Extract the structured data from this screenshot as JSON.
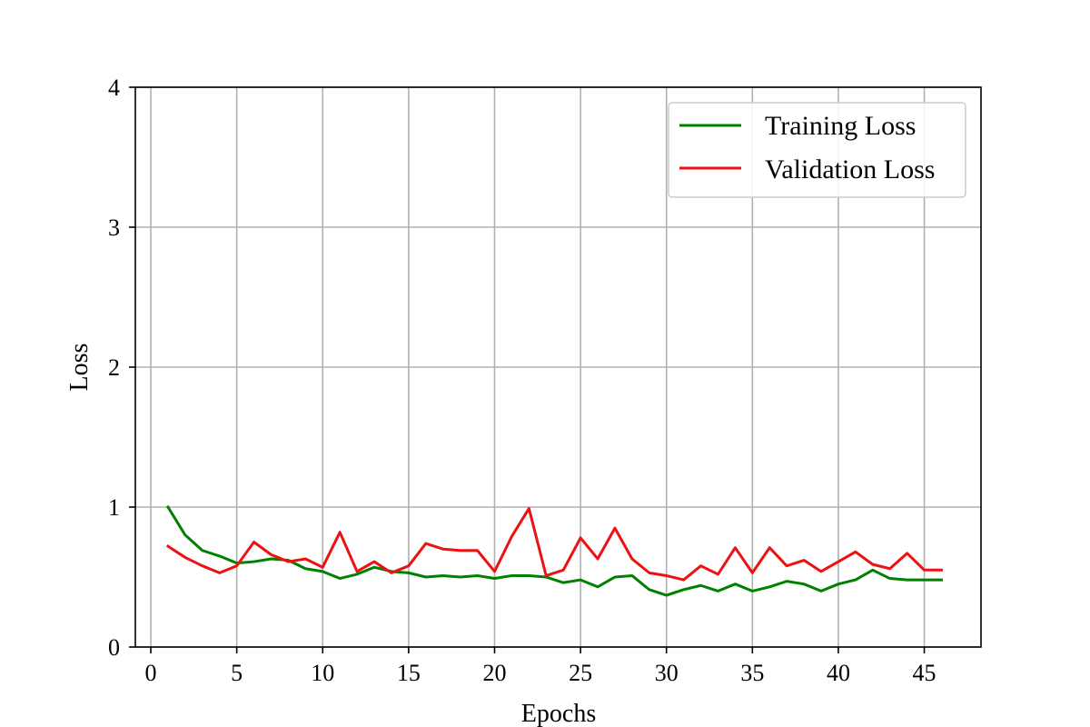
{
  "chart_data": {
    "type": "line",
    "title": "",
    "xlabel": "Epochs",
    "ylabel": "Loss",
    "xlim": [
      -0.9,
      48.3
    ],
    "ylim": [
      0,
      4
    ],
    "x_ticks": [
      "0",
      "5",
      "10",
      "15",
      "20",
      "25",
      "30",
      "35",
      "40",
      "45"
    ],
    "y_ticks": [
      "0",
      "1",
      "2",
      "3",
      "4"
    ],
    "grid": true,
    "legend_position": "top-right",
    "x": [
      1,
      2,
      3,
      4,
      5,
      6,
      7,
      8,
      9,
      10,
      11,
      12,
      13,
      14,
      15,
      16,
      17,
      18,
      19,
      20,
      21,
      22,
      23,
      24,
      25,
      26,
      27,
      28,
      29,
      30,
      31,
      32,
      33,
      34,
      35,
      36,
      37,
      38,
      39,
      40,
      41,
      42,
      43,
      44,
      45,
      46
    ],
    "series": [
      {
        "name": "Training Loss",
        "color": "#008000",
        "values": [
          1.0,
          0.8,
          0.69,
          0.65,
          0.6,
          0.61,
          0.63,
          0.62,
          0.56,
          0.54,
          0.49,
          0.52,
          0.57,
          0.54,
          0.53,
          0.5,
          0.51,
          0.5,
          0.51,
          0.49,
          0.51,
          0.51,
          0.5,
          0.46,
          0.48,
          0.43,
          0.5,
          0.51,
          0.41,
          0.37,
          0.41,
          0.44,
          0.4,
          0.45,
          0.4,
          0.43,
          0.47,
          0.45,
          0.4,
          0.45,
          0.48,
          0.55,
          0.49,
          0.48,
          0.48,
          0.48
        ]
      },
      {
        "name": "Validation Loss",
        "color": "#ee1111",
        "values": [
          0.72,
          0.64,
          0.58,
          0.53,
          0.58,
          0.75,
          0.66,
          0.61,
          0.63,
          0.57,
          0.82,
          0.54,
          0.61,
          0.53,
          0.58,
          0.74,
          0.7,
          0.69,
          0.69,
          0.54,
          0.79,
          0.99,
          0.51,
          0.55,
          0.78,
          0.63,
          0.85,
          0.63,
          0.53,
          0.51,
          0.48,
          0.58,
          0.52,
          0.71,
          0.53,
          0.71,
          0.58,
          0.62,
          0.54,
          0.61,
          0.68,
          0.59,
          0.56,
          0.67,
          0.55,
          0.55
        ]
      }
    ]
  }
}
